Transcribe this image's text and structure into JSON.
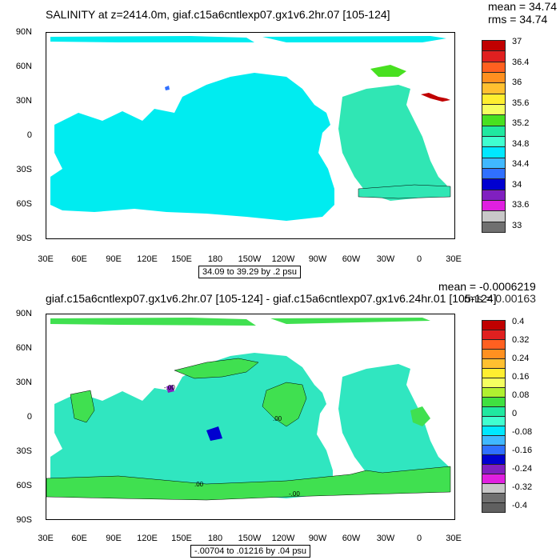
{
  "panels": [
    {
      "title": "SALINITY at z=2414.0m, giaf.c15a6cntlexp07.gx1v6.2hr.07 [105-124]",
      "mean": "mean = 34.74",
      "rms": "rms = 34.74",
      "range": "34.09 to 39.29 by .2 psu",
      "lat_labels": [
        "90N",
        "60N",
        "30N",
        "0",
        "30S",
        "60S",
        "90S"
      ],
      "lon_labels": [
        "30E",
        "60E",
        "90E",
        "120E",
        "150E",
        "180",
        "150W",
        "120W",
        "90W",
        "60W",
        "30W",
        "0",
        "30E"
      ],
      "colorbar": {
        "labels": [
          "37",
          "36.4",
          "36",
          "35.6",
          "35.2",
          "34.8",
          "34.4",
          "34",
          "33.6",
          "33"
        ],
        "colors": [
          "#c00000",
          "#e02020",
          "#ff6020",
          "#ff9020",
          "#ffc030",
          "#ffee30",
          "#f5ff60",
          "#48e020",
          "#20e8a0",
          "#40ffd0",
          "#00e8ff",
          "#40b8ff",
          "#3070ff",
          "#0000d0",
          "#8020c0",
          "#e020e0",
          "#c8c8c8",
          "#707070"
        ]
      },
      "ocean_color": "#00ecf0",
      "atlantic_color": "#30e6b4"
    },
    {
      "title": "giaf.c15a6cntlexp07.gx1v6.2hr.07 [105-124] - giaf.c15a6cntlexp07.gx1v6.24hr.01 [105-124]",
      "mean": "mean = -0.0006219",
      "rms": "rms = 0.00163",
      "range": "-.00704 to .01216 by .04 psu",
      "lat_labels": [
        "90N",
        "60N",
        "30N",
        "0",
        "30S",
        "60S",
        "90S"
      ],
      "lon_labels": [
        "30E",
        "60E",
        "90E",
        "120E",
        "150E",
        "180",
        "150W",
        "120W",
        "90W",
        "60W",
        "30W",
        "0",
        "30E"
      ],
      "contour_labels": [
        "-.00",
        ".00",
        ".00",
        "-.00"
      ],
      "colorbar": {
        "labels": [
          "0.4",
          "0.32",
          "0.24",
          "0.16",
          "0.08",
          "0",
          "-0.08",
          "-0.16",
          "-0.24",
          "-0.32",
          "-0.4"
        ],
        "colors": [
          "#c00000",
          "#e02020",
          "#ff6020",
          "#ff9020",
          "#ffc030",
          "#ffee30",
          "#f5ff60",
          "#b0f030",
          "#40e040",
          "#20e8a0",
          "#40ffd0",
          "#00e8ff",
          "#40b8ff",
          "#3070ff",
          "#0000d0",
          "#8020c0",
          "#e020e0",
          "#c8c8c8",
          "#707070",
          "#606060"
        ]
      },
      "ocean_color": "#30e6c0",
      "positive_color": "#40e050"
    }
  ]
}
